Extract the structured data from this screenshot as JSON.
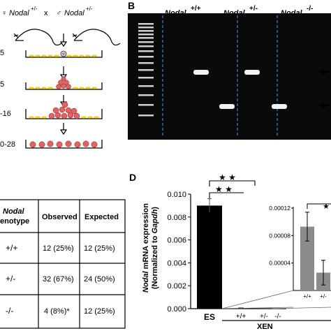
{
  "panel_a": {
    "cross": {
      "female_symbol": "♀",
      "male_symbol": "♂",
      "gene": "Nodal",
      "genotype": "+/-",
      "times": "x"
    },
    "day_labels": [
      "5",
      "5",
      "-16",
      "0-28"
    ]
  },
  "panel_b": {
    "label": "B",
    "lanes": [
      {
        "gene": "Nodal",
        "genotype": "+/+"
      },
      {
        "gene": "Nodal",
        "genotype": "+/-"
      },
      {
        "gene": "Nodal",
        "genotype": "-/-"
      }
    ],
    "colors": {
      "gel_bg": "#0a0a0a",
      "band": "#f2f2f2",
      "divider": "#3a7bd5"
    }
  },
  "panel_c": {
    "headers": {
      "gene": "Nodal",
      "genotype_label": "enotype",
      "observed": "Observed",
      "expected": "Expected"
    },
    "rows": [
      {
        "genotype": "+/+",
        "observed": "12 (25%)",
        "expected": "12 (25%)"
      },
      {
        "genotype": "+/-",
        "observed": "32 (67%)",
        "expected": "24 (50%)"
      },
      {
        "genotype": "-/-",
        "observed": "4 (8%)*",
        "expected": "12 (25%)"
      }
    ]
  },
  "panel_d": {
    "label": "D",
    "ylabel_line1_gene": "Nodal",
    "ylabel_line1_rest": " mRNA expression",
    "ylabel_line2_prefix": "(Normalized to ",
    "ylabel_line2_gene": "Gapdh",
    "ylabel_line2_suffix": ")",
    "group_label": "XEN",
    "significance": "★ ★",
    "inset_significance": "★",
    "y_ticks": [
      "0.010",
      "0.008",
      "0.006",
      "0.004",
      "0.002",
      "0.000"
    ],
    "x_labels": [
      "ES",
      "+/+",
      "+/-",
      "-/-"
    ],
    "inset_y_ticks": [
      "0.00012",
      "0.00008",
      "0.00004"
    ],
    "inset_x_labels": [
      "+/+",
      "+/-"
    ],
    "colors": {
      "main_bar": "#000000",
      "inset_bar": "#8c8c8c"
    }
  },
  "chart_data": [
    {
      "type": "bar",
      "categories": [
        "ES",
        "+/+",
        "+/-",
        "-/-"
      ],
      "values": [
        0.009,
        9e-05,
        3e-05,
        0
      ],
      "errors": [
        0.0006,
        0,
        0,
        0
      ],
      "ylim": [
        0,
        0.01
      ],
      "xlabel": "XEN",
      "ylabel": "Nodal mRNA expression (Normalized to Gapdh)"
    },
    {
      "type": "bar",
      "categories": [
        "+/+",
        "+/-"
      ],
      "values": [
        9.3e-05,
        2.6e-05
      ],
      "errors": [
        2.1e-05,
        1.8e-05
      ],
      "ylim": [
        0,
        0.00012
      ]
    }
  ]
}
